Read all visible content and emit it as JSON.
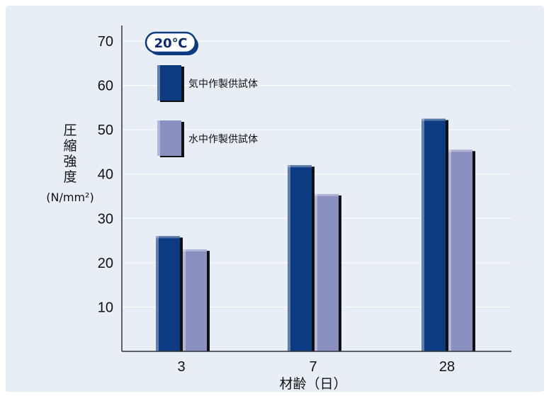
{
  "chart_data": {
    "type": "bar",
    "categories": [
      "3",
      "7",
      "28"
    ],
    "series": [
      {
        "name": "気中作製供試体",
        "values": [
          26,
          42,
          52.5
        ]
      },
      {
        "name": "水中作製供試体",
        "values": [
          23,
          35.5,
          45.5
        ]
      }
    ],
    "ylim": [
      0,
      70
    ],
    "yticks": [
      "10",
      "20",
      "30",
      "40",
      "50",
      "60",
      "70"
    ],
    "ylabel": "圧縮強度",
    "yunit": "(N/mm²)",
    "xlabel": "材齢（日）",
    "badge": "20℃",
    "legend_position": "top-left",
    "grid": true,
    "colors": {
      "background": "#e8eef6",
      "series1": "#0d3b82",
      "series2": "#8a90c0",
      "grid": "#ffffff",
      "axis": "#333333",
      "badge_fill": "#ffffff",
      "badge_border": "#0d3b82"
    }
  }
}
